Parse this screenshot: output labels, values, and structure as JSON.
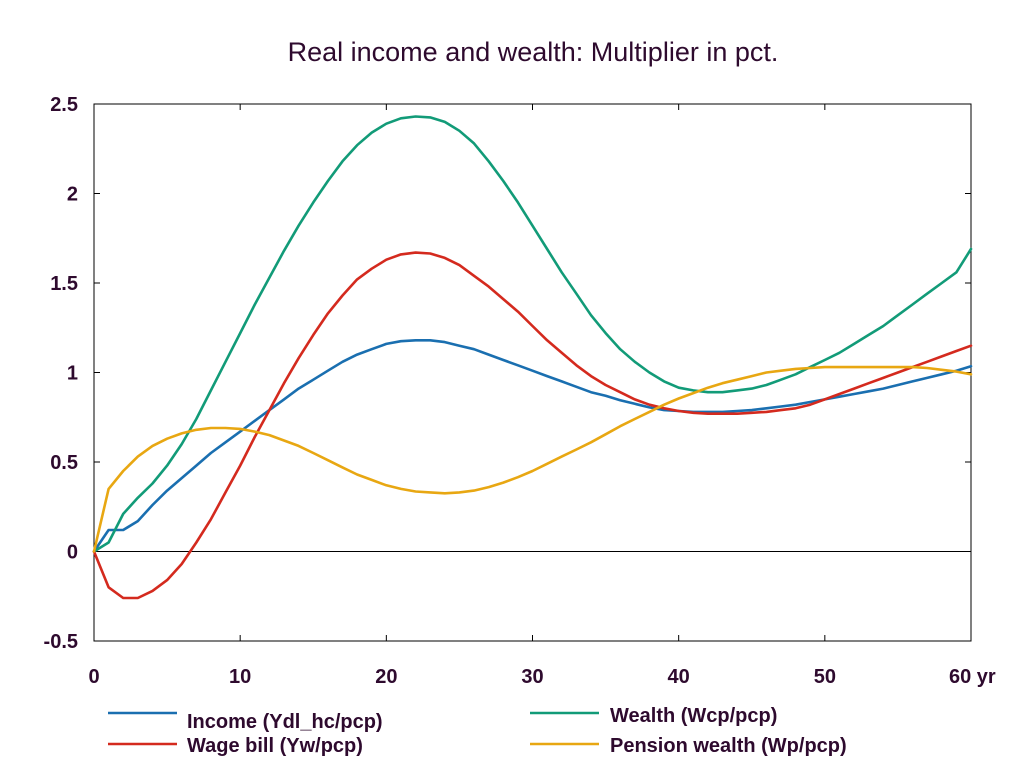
{
  "chart_data": {
    "type": "line",
    "title": "Real income and wealth: Multiplier in pct.",
    "x_unit_label": "yr",
    "xlim": [
      0,
      60
    ],
    "ylim": [
      -0.5,
      2.5
    ],
    "x_ticks": [
      0,
      10,
      20,
      30,
      40,
      50,
      60
    ],
    "x_tick_labels": [
      "0",
      "10",
      "20",
      "30",
      "40",
      "50",
      "60 yr"
    ],
    "y_ticks": [
      -0.5,
      0,
      0.5,
      1,
      1.5,
      2,
      2.5
    ],
    "y_tick_labels": [
      "-0.5",
      "0",
      "0.5",
      "1",
      "1.5",
      "2",
      "2.5"
    ],
    "grid": false,
    "zero_line": true,
    "legend_position": "bottom",
    "x": [
      0,
      1,
      2,
      3,
      4,
      5,
      6,
      7,
      8,
      9,
      10,
      11,
      12,
      13,
      14,
      15,
      16,
      17,
      18,
      19,
      20,
      21,
      22,
      23,
      24,
      25,
      26,
      27,
      28,
      29,
      30,
      31,
      32,
      33,
      34,
      35,
      36,
      37,
      38,
      39,
      40,
      41,
      42,
      43,
      44,
      45,
      46,
      47,
      48,
      49,
      50,
      51,
      52,
      53,
      54,
      55,
      56,
      57,
      58,
      59,
      60
    ],
    "series": [
      {
        "name": "Income (Ydl_hc/pcp)",
        "color": "#1a6fb0",
        "values": [
          0,
          0.12,
          0.12,
          0.17,
          0.26,
          0.34,
          0.41,
          0.48,
          0.55,
          0.61,
          0.67,
          0.73,
          0.79,
          0.85,
          0.91,
          0.96,
          1.01,
          1.06,
          1.1,
          1.13,
          1.16,
          1.175,
          1.18,
          1.18,
          1.17,
          1.15,
          1.13,
          1.1,
          1.07,
          1.04,
          1.01,
          0.98,
          0.95,
          0.92,
          0.89,
          0.87,
          0.845,
          0.825,
          0.805,
          0.79,
          0.785,
          0.78,
          0.78,
          0.78,
          0.785,
          0.79,
          0.8,
          0.81,
          0.82,
          0.835,
          0.85,
          0.865,
          0.88,
          0.895,
          0.91,
          0.93,
          0.95,
          0.97,
          0.99,
          1.01,
          1.035
        ]
      },
      {
        "name": "Wealth (Wcp/pcp)",
        "color": "#129b78",
        "values": [
          0,
          0.05,
          0.21,
          0.3,
          0.38,
          0.48,
          0.6,
          0.74,
          0.9,
          1.06,
          1.22,
          1.38,
          1.53,
          1.68,
          1.82,
          1.95,
          2.07,
          2.18,
          2.27,
          2.34,
          2.39,
          2.42,
          2.43,
          2.425,
          2.4,
          2.35,
          2.28,
          2.18,
          2.07,
          1.95,
          1.82,
          1.69,
          1.56,
          1.44,
          1.32,
          1.22,
          1.13,
          1.06,
          1.0,
          0.95,
          0.915,
          0.9,
          0.89,
          0.89,
          0.9,
          0.91,
          0.93,
          0.96,
          0.99,
          1.03,
          1.07,
          1.11,
          1.16,
          1.21,
          1.26,
          1.32,
          1.38,
          1.44,
          1.5,
          1.56,
          1.69
        ]
      },
      {
        "name": "Wage bill (Yw/pcp)",
        "color": "#d42a1e",
        "values": [
          0,
          -0.2,
          -0.26,
          -0.26,
          -0.22,
          -0.16,
          -0.07,
          0.05,
          0.18,
          0.33,
          0.48,
          0.64,
          0.79,
          0.94,
          1.08,
          1.21,
          1.33,
          1.43,
          1.52,
          1.58,
          1.63,
          1.66,
          1.67,
          1.665,
          1.64,
          1.6,
          1.54,
          1.48,
          1.41,
          1.34,
          1.26,
          1.18,
          1.11,
          1.04,
          0.98,
          0.93,
          0.89,
          0.85,
          0.82,
          0.8,
          0.785,
          0.775,
          0.77,
          0.77,
          0.77,
          0.775,
          0.78,
          0.79,
          0.8,
          0.82,
          0.85,
          0.88,
          0.91,
          0.94,
          0.97,
          1.0,
          1.03,
          1.06,
          1.09,
          1.12,
          1.15
        ]
      },
      {
        "name": "Pension wealth (Wp/pcp)",
        "color": "#e8a712",
        "values": [
          0,
          0.35,
          0.45,
          0.53,
          0.59,
          0.63,
          0.66,
          0.68,
          0.69,
          0.69,
          0.685,
          0.67,
          0.65,
          0.62,
          0.59,
          0.55,
          0.51,
          0.47,
          0.43,
          0.4,
          0.37,
          0.35,
          0.335,
          0.33,
          0.325,
          0.33,
          0.34,
          0.36,
          0.385,
          0.415,
          0.45,
          0.49,
          0.53,
          0.57,
          0.61,
          0.655,
          0.7,
          0.74,
          0.78,
          0.82,
          0.855,
          0.885,
          0.915,
          0.94,
          0.96,
          0.98,
          1.0,
          1.01,
          1.02,
          1.025,
          1.03,
          1.03,
          1.03,
          1.03,
          1.03,
          1.03,
          1.03,
          1.025,
          1.015,
          1.005,
          0.99
        ]
      }
    ]
  }
}
